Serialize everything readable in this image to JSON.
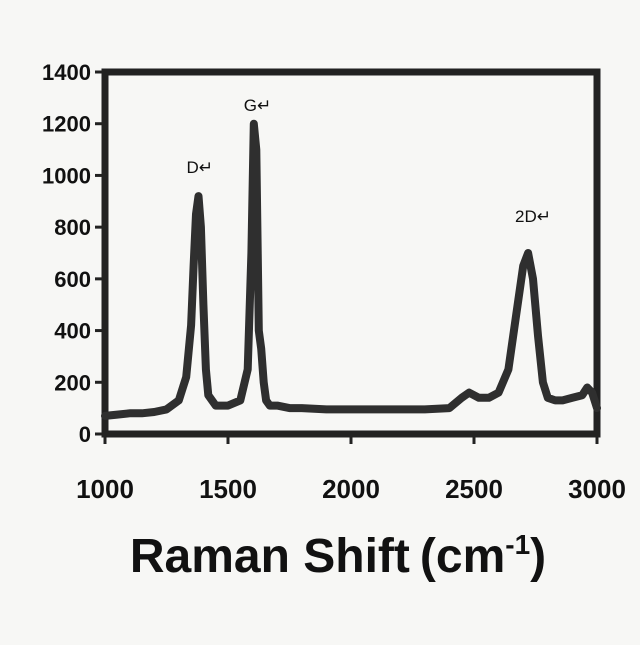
{
  "chart_data": {
    "type": "line",
    "xlabel_main": "Raman Shift",
    "xlabel_unit_open": "(cm",
    "xlabel_unit_sup": "-1",
    "xlabel_unit_close": ")",
    "ylabel": "",
    "xlim": [
      1000,
      3000
    ],
    "ylim": [
      0,
      1400
    ],
    "x_ticks": [
      1000,
      1500,
      2000,
      2500,
      3000
    ],
    "y_ticks": [
      0,
      200,
      400,
      600,
      800,
      1000,
      1200,
      1400
    ],
    "grid": false,
    "line_color": "#2f2f2f",
    "annotations": [
      {
        "text": "D↵",
        "x": 1385,
        "y": 1010
      },
      {
        "text": "G↵",
        "x": 1620,
        "y": 1250
      },
      {
        "text": "2D↵",
        "x": 2740,
        "y": 820
      }
    ],
    "series": [
      {
        "x": [
          1000,
          1050,
          1100,
          1150,
          1200,
          1250,
          1300,
          1330,
          1350,
          1360,
          1370,
          1380,
          1390,
          1400,
          1410,
          1420,
          1450,
          1500,
          1550,
          1580,
          1595,
          1605,
          1615,
          1625,
          1635,
          1645,
          1655,
          1670,
          1700,
          1750,
          1800,
          1900,
          2000,
          2100,
          2200,
          2300,
          2400,
          2450,
          2480,
          2520,
          2560,
          2600,
          2640,
          2670,
          2700,
          2720,
          2740,
          2760,
          2780,
          2800,
          2830,
          2860,
          2900,
          2940,
          2960,
          2980,
          3000
        ],
        "y": [
          70,
          75,
          80,
          80,
          85,
          95,
          130,
          220,
          420,
          650,
          850,
          920,
          800,
          500,
          250,
          150,
          110,
          110,
          130,
          250,
          700,
          1200,
          1100,
          400,
          330,
          200,
          130,
          110,
          110,
          100,
          100,
          95,
          95,
          95,
          95,
          95,
          100,
          140,
          160,
          140,
          140,
          160,
          250,
          450,
          650,
          700,
          600,
          380,
          200,
          140,
          130,
          130,
          140,
          150,
          180,
          160,
          100
        ]
      }
    ]
  }
}
